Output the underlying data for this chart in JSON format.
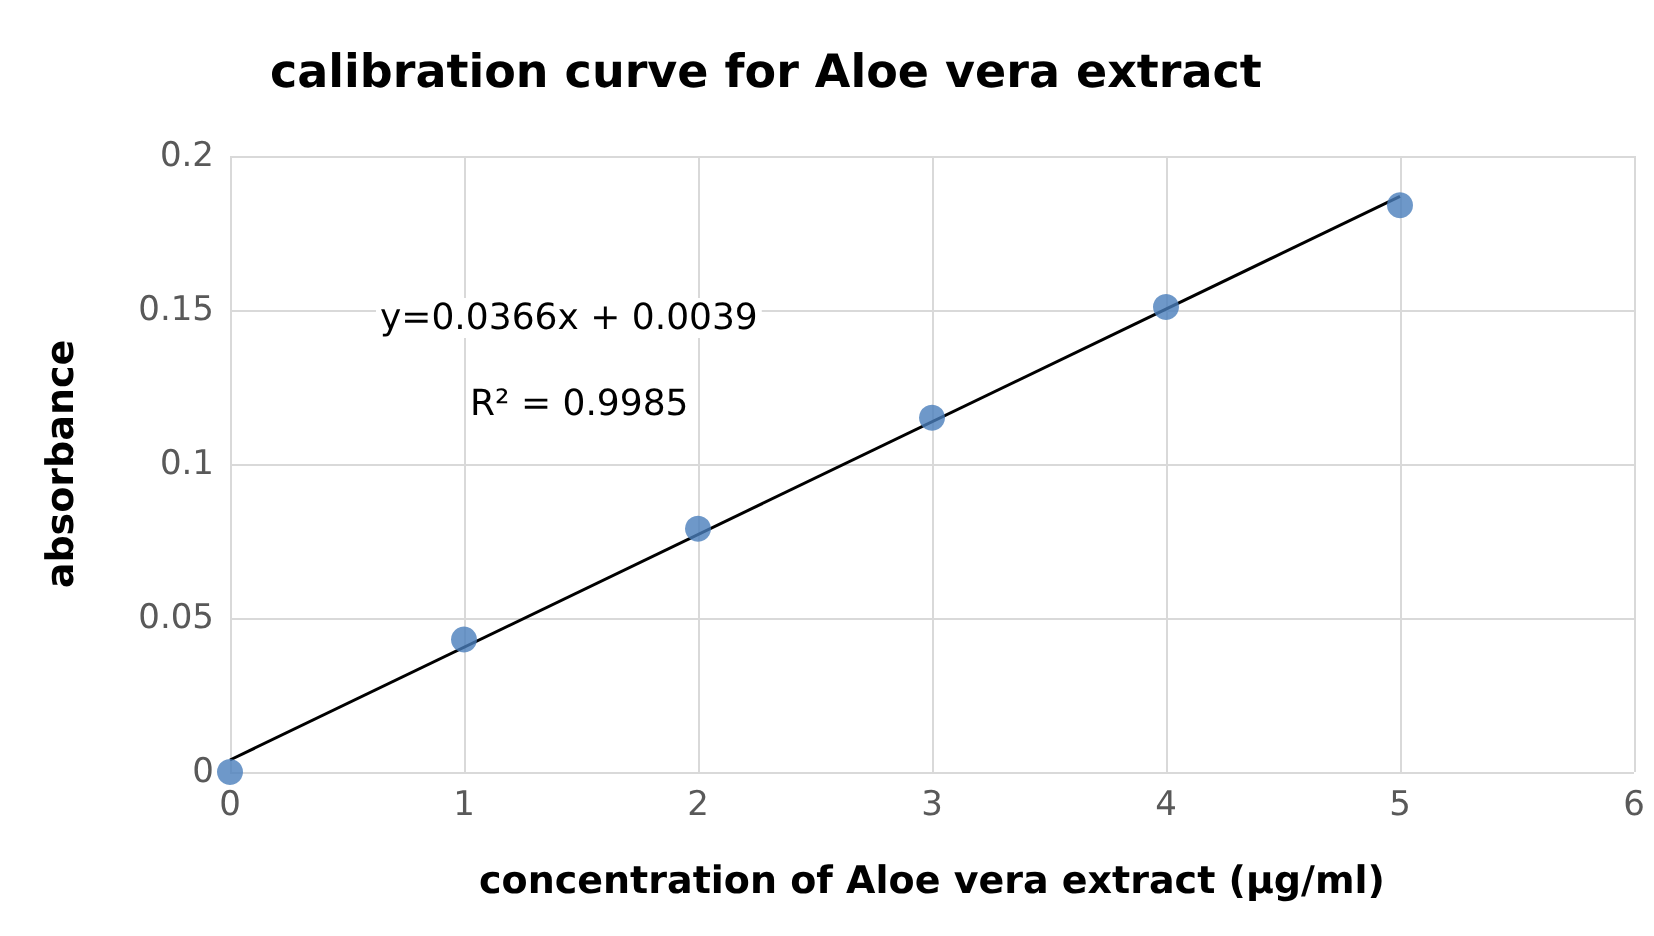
{
  "chart_data": {
    "type": "scatter",
    "title": "calibration curve for Aloe vera extract",
    "xlabel": "concentration of Aloe vera extract (µg/ml)",
    "ylabel": "absorbance",
    "x": [
      0,
      1,
      2,
      3,
      4,
      5
    ],
    "series": [
      {
        "color": "#4a7ebb",
        "marker": "circle",
        "values": [
          0,
          0.043,
          0.079,
          0.115,
          0.151,
          0.184
        ]
      },
      {
        "type": "line",
        "marker": "none",
        "color": "#000000",
        "x": [
          0,
          5
        ],
        "values": [
          0.0039,
          0.1869
        ]
      }
    ],
    "xlim": [
      0,
      6
    ],
    "xticks": [
      0,
      1,
      2,
      3,
      4,
      5,
      6
    ],
    "ylim": [
      0,
      0.2
    ],
    "yticks": [
      0,
      0.05,
      0.1,
      0.15,
      0.2
    ],
    "annotations": [
      "y=0.0366x + 0.0039",
      "R² = 0.9985"
    ],
    "grid": true,
    "line_style": "solid"
  }
}
